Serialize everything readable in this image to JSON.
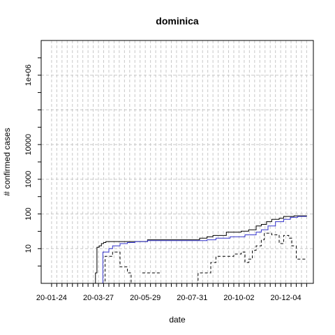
{
  "chart_data": {
    "type": "line",
    "title": "dominica",
    "xlabel": "date",
    "ylabel": "# confirmed cases",
    "y_scale": "log",
    "ylim": [
      1,
      10000000
    ],
    "y_ticks": [
      10,
      100,
      1000,
      10000,
      1000000
    ],
    "y_tick_labels": [
      "10",
      "100",
      "1000",
      "10000",
      "1e+06"
    ],
    "xlim": [
      "2020-01-10",
      "2021-01-10"
    ],
    "x_tick_labels": [
      "20-01-24",
      "20-03-27",
      "20-05-29",
      "20-07-31",
      "20-10-02",
      "20-12-04"
    ],
    "x_tick_dates": [
      "2020-01-24",
      "2020-03-27",
      "2020-05-29",
      "2020-07-31",
      "2020-10-02",
      "2020-12-04"
    ],
    "x_minor_interval_days": 7,
    "x_minor_start": "2020-01-24",
    "x_minor_end": "2021-01-01",
    "grid": true,
    "series": [
      {
        "color": "#000000",
        "style": "solid",
        "points": [
          [
            "2020-03-22",
            1
          ],
          [
            "2020-03-23",
            2
          ],
          [
            "2020-03-25",
            11
          ],
          [
            "2020-03-28",
            12
          ],
          [
            "2020-03-31",
            14
          ],
          [
            "2020-04-03",
            15
          ],
          [
            "2020-04-06",
            16
          ],
          [
            "2020-05-20",
            16
          ],
          [
            "2020-06-01",
            18
          ],
          [
            "2020-08-05",
            18
          ],
          [
            "2020-08-10",
            20
          ],
          [
            "2020-08-20",
            22
          ],
          [
            "2020-08-28",
            24
          ],
          [
            "2020-09-15",
            30
          ],
          [
            "2020-10-05",
            32
          ],
          [
            "2020-10-15",
            35
          ],
          [
            "2020-10-25",
            45
          ],
          [
            "2020-11-01",
            50
          ],
          [
            "2020-11-08",
            60
          ],
          [
            "2020-11-15",
            70
          ],
          [
            "2020-11-25",
            75
          ],
          [
            "2020-12-01",
            85
          ],
          [
            "2020-12-15",
            88
          ],
          [
            "2021-01-01",
            90
          ]
        ]
      },
      {
        "color": "#3333cc",
        "style": "solid",
        "points": [
          [
            "2020-04-01",
            1
          ],
          [
            "2020-04-02",
            8
          ],
          [
            "2020-04-10",
            10
          ],
          [
            "2020-04-15",
            12
          ],
          [
            "2020-04-25",
            14
          ],
          [
            "2020-05-05",
            15
          ],
          [
            "2020-05-15",
            16
          ],
          [
            "2020-06-01",
            17
          ],
          [
            "2020-07-15",
            17
          ],
          [
            "2020-08-20",
            18
          ],
          [
            "2020-09-01",
            20
          ],
          [
            "2020-09-20",
            22
          ],
          [
            "2020-10-10",
            25
          ],
          [
            "2020-10-25",
            30
          ],
          [
            "2020-11-01",
            35
          ],
          [
            "2020-11-10",
            45
          ],
          [
            "2020-11-20",
            60
          ],
          [
            "2020-12-01",
            70
          ],
          [
            "2020-12-10",
            80
          ],
          [
            "2020-12-20",
            85
          ],
          [
            "2021-01-01",
            85
          ]
        ]
      },
      {
        "color": "#000000",
        "style": "dashed",
        "segments": [
          [
            [
              "2020-04-01",
              1
            ],
            [
              "2020-04-05",
              6
            ],
            [
              "2020-04-15",
              8
            ],
            [
              "2020-04-25",
              3
            ],
            [
              "2020-05-05",
              2
            ],
            [
              "2020-05-10",
              1
            ]
          ],
          [
            [
              "2020-05-25",
              2
            ],
            [
              "2020-06-20",
              2
            ]
          ],
          [
            [
              "2020-08-05",
              1
            ],
            [
              "2020-08-08",
              2
            ],
            [
              "2020-08-20",
              2
            ],
            [
              "2020-08-25",
              4
            ],
            [
              "2020-09-01",
              6
            ],
            [
              "2020-09-20",
              6
            ],
            [
              "2020-09-25",
              7
            ],
            [
              "2020-10-05",
              8
            ],
            [
              "2020-10-10",
              4
            ],
            [
              "2020-10-15",
              5
            ],
            [
              "2020-10-20",
              9
            ],
            [
              "2020-10-25",
              12
            ],
            [
              "2020-11-01",
              18
            ],
            [
              "2020-11-05",
              28
            ],
            [
              "2020-11-15",
              25
            ],
            [
              "2020-11-25",
              14
            ],
            [
              "2020-12-01",
              24
            ],
            [
              "2020-12-08",
              20
            ],
            [
              "2020-12-12",
              12
            ],
            [
              "2020-12-18",
              5
            ],
            [
              "2021-01-01",
              5
            ]
          ]
        ]
      }
    ]
  }
}
